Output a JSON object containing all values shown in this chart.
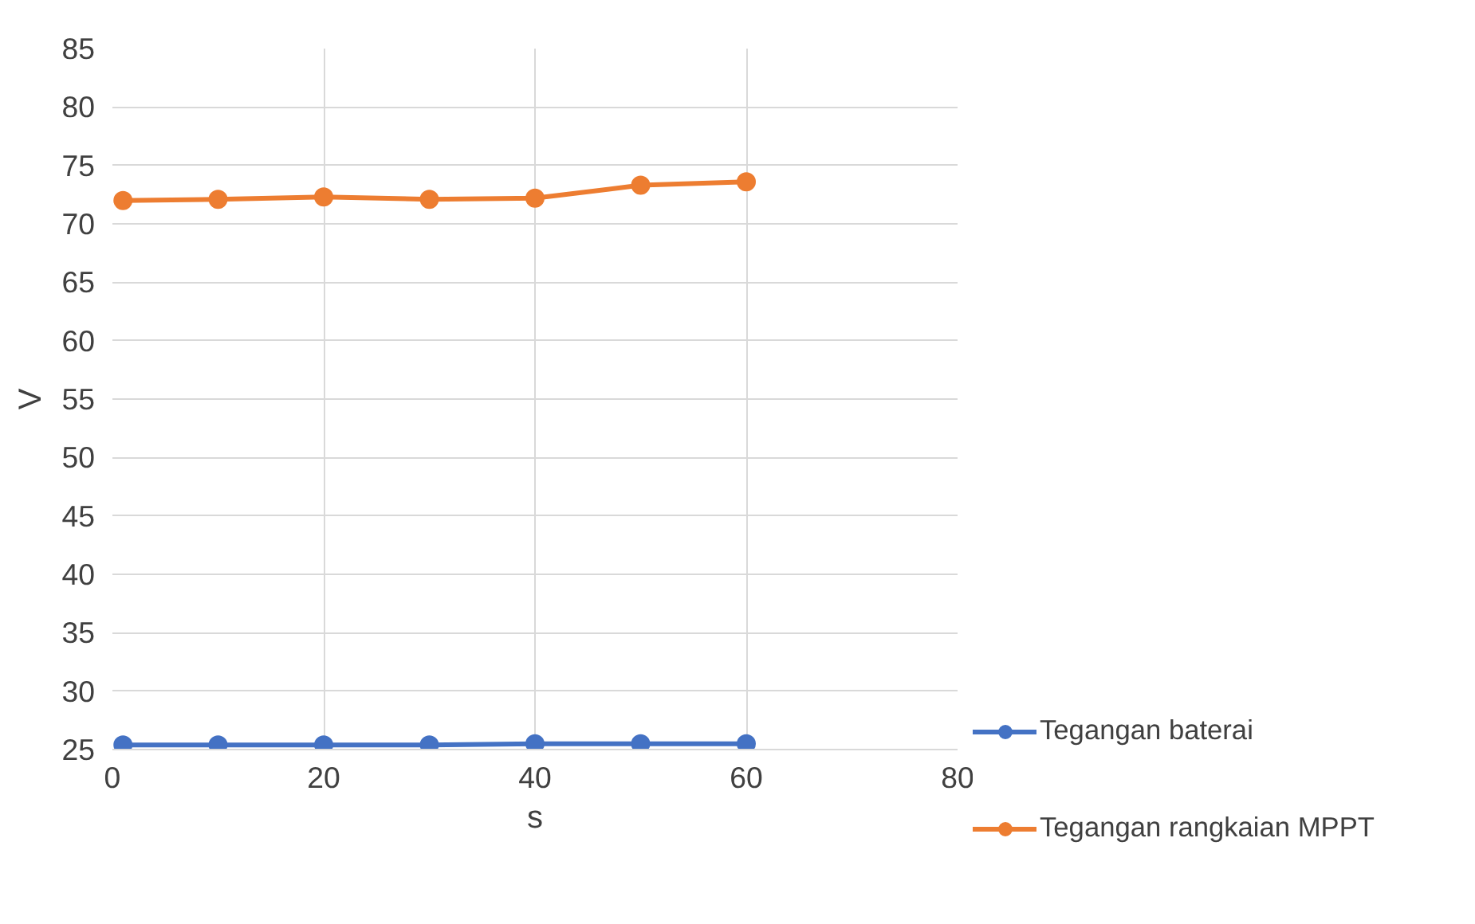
{
  "chart_data": {
    "type": "line",
    "xlabel": "s",
    "ylabel": "V",
    "x": [
      1,
      10,
      20,
      30,
      40,
      50,
      60
    ],
    "series": [
      {
        "name": "Tegangan baterai",
        "color": "#4472c4",
        "values": [
          25.4,
          25.4,
          25.4,
          25.4,
          25.5,
          25.5,
          25.5
        ]
      },
      {
        "name": "Tegangan rangkaian MPPT",
        "color": "#ed7d31",
        "values": [
          72.0,
          72.1,
          72.3,
          72.1,
          72.2,
          73.3,
          73.6
        ]
      }
    ],
    "xlim": [
      0,
      80
    ],
    "xticks": [
      0,
      20,
      40,
      60,
      80
    ],
    "ylim": [
      25,
      85
    ],
    "yticks": [
      25,
      30,
      35,
      40,
      45,
      50,
      55,
      60,
      65,
      70,
      75,
      80,
      85
    ],
    "grid": true,
    "legend": "right",
    "marker": "circle",
    "line_style": "solid"
  }
}
